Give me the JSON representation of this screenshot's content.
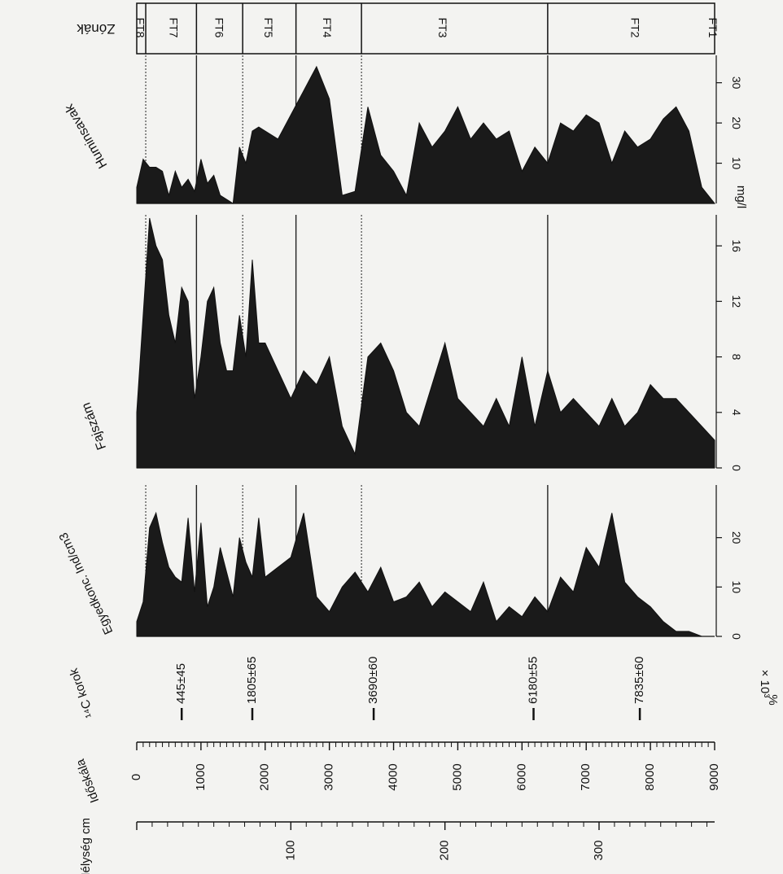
{
  "chart_data": {
    "type": "area",
    "orientation": "rotated-90-clockwise",
    "x_axis_shared": {
      "depth_label": "Mélység cm",
      "depth_ticks": [
        "100",
        "200",
        "300"
      ],
      "age_label": "Időskála",
      "age_ticks": [
        "0",
        "1000",
        "2000",
        "3000",
        "4000",
        "5000",
        "6000",
        "7000",
        "8000",
        "9000"
      ],
      "c14_label": "¹⁴C korok",
      "c14_dates": [
        "445±45",
        "1805±65",
        "3690±60",
        "6180±55",
        "7835±60"
      ]
    },
    "zones": {
      "label": "Zónák",
      "names": [
        "FT8",
        "FT7",
        "FT6",
        "FT5",
        "FT4",
        "FT3",
        "FT2",
        "FT1"
      ]
    },
    "panels": [
      {
        "name": "Egyedkonc. Ind/cm3",
        "ylim": [
          0,
          30
        ],
        "ticks": [
          "0",
          "10",
          "20"
        ],
        "unit": "",
        "x": [
          0,
          100,
          200,
          300,
          400,
          500,
          600,
          700,
          800,
          900,
          1000,
          1100,
          1200,
          1300,
          1400,
          1500,
          1600,
          1700,
          1800,
          1900,
          2000,
          2200,
          2400,
          2600,
          2800,
          3000,
          3200,
          3400,
          3600,
          3800,
          4000,
          4200,
          4400,
          4600,
          4800,
          5000,
          5200,
          5400,
          5600,
          5800,
          6000,
          6200,
          6400,
          6600,
          6800,
          7000,
          7200,
          7400,
          7600,
          7800,
          8000,
          8200,
          8400,
          8600,
          8800,
          9000
        ],
        "values": [
          3,
          7,
          22,
          25,
          19,
          14,
          12,
          11,
          24,
          9,
          23,
          6,
          10,
          18,
          13,
          8,
          20,
          15,
          12,
          24,
          12,
          14,
          16,
          25,
          8,
          5,
          10,
          13,
          9,
          14,
          7,
          8,
          11,
          6,
          9,
          7,
          5,
          11,
          3,
          6,
          4,
          8,
          5,
          12,
          9,
          18,
          14,
          25,
          11,
          8,
          6,
          3,
          1,
          1,
          0,
          0
        ]
      },
      {
        "name": "Fajszám",
        "ylim": [
          0,
          18
        ],
        "ticks": [
          "0",
          "4",
          "8",
          "12",
          "16"
        ],
        "unit": "",
        "x": [
          0,
          100,
          200,
          300,
          400,
          500,
          600,
          700,
          800,
          900,
          1000,
          1100,
          1200,
          1300,
          1400,
          1500,
          1600,
          1700,
          1800,
          1900,
          2000,
          2200,
          2400,
          2600,
          2800,
          3000,
          3200,
          3400,
          3600,
          3800,
          4000,
          4200,
          4400,
          4600,
          4800,
          5000,
          5200,
          5400,
          5600,
          5800,
          6000,
          6200,
          6400,
          6600,
          6800,
          7000,
          7200,
          7400,
          7600,
          7800,
          8000,
          8200,
          8400,
          8600,
          8800,
          9000
        ],
        "values": [
          4,
          11,
          18,
          16,
          15,
          11,
          9,
          13,
          12,
          5,
          8,
          12,
          13,
          9,
          7,
          7,
          11,
          8,
          15,
          9,
          9,
          7,
          5,
          7,
          6,
          8,
          3,
          1,
          8,
          9,
          7,
          4,
          3,
          6,
          9,
          5,
          4,
          3,
          5,
          3,
          8,
          3,
          7,
          4,
          5,
          4,
          3,
          5,
          3,
          4,
          6,
          5,
          5,
          4,
          3,
          2
        ]
      },
      {
        "name": "Huminsavak",
        "ylim": [
          0,
          36
        ],
        "ticks": [
          "10",
          "20",
          "30"
        ],
        "unit": "mg/l",
        "x": [
          0,
          100,
          200,
          300,
          400,
          500,
          600,
          700,
          800,
          900,
          1000,
          1100,
          1200,
          1300,
          1400,
          1500,
          1600,
          1700,
          1800,
          1900,
          2000,
          2200,
          2400,
          2600,
          2800,
          3000,
          3200,
          3400,
          3600,
          3800,
          4000,
          4200,
          4400,
          4600,
          4800,
          5000,
          5200,
          5400,
          5600,
          5800,
          6000,
          6200,
          6400,
          6600,
          6800,
          7000,
          7200,
          7400,
          7600,
          7800,
          8000,
          8200,
          8400,
          8600,
          8800,
          9000
        ],
        "values": [
          4,
          11,
          9,
          9,
          8,
          2,
          8,
          4,
          6,
          3,
          11,
          5,
          7,
          2,
          1,
          0,
          14,
          10,
          18,
          19,
          18,
          16,
          22,
          28,
          34,
          26,
          2,
          3,
          24,
          12,
          8,
          2,
          20,
          14,
          18,
          24,
          16,
          20,
          16,
          18,
          8,
          14,
          10,
          20,
          18,
          22,
          20,
          10,
          18,
          14,
          16,
          21,
          24,
          18,
          4,
          0
        ]
      }
    ]
  }
}
